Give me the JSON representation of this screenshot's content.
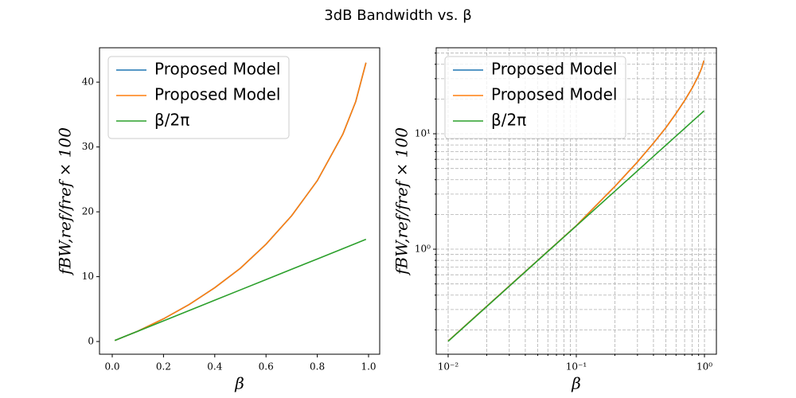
{
  "title": "3dB Bandwidth vs. β",
  "chart_data": [
    {
      "type": "line",
      "x_label": "β",
      "y_label": "fBW,ref/fref × 100",
      "x": [
        0.01,
        0.05,
        0.1,
        0.2,
        0.3,
        0.4,
        0.5,
        0.6,
        0.7,
        0.8,
        0.9,
        0.95,
        0.99
      ],
      "series": [
        {
          "name": "Proposed Model",
          "color": "#1f77b4",
          "values": [
            0.16,
            0.8,
            1.6,
            3.5,
            5.7,
            8.3,
            11.3,
            15.0,
            19.4,
            24.8,
            32,
            37,
            43
          ]
        },
        {
          "name": "Proposed Model",
          "color": "#ff7f0e",
          "values": [
            0.16,
            0.8,
            1.6,
            3.5,
            5.7,
            8.3,
            11.3,
            15.0,
            19.4,
            24.8,
            32,
            37,
            43
          ]
        },
        {
          "name": "β/2π",
          "color": "#2ca02c",
          "values": [
            0.159,
            0.796,
            1.59,
            3.18,
            4.77,
            6.37,
            7.96,
            9.55,
            11.14,
            12.73,
            14.32,
            15.12,
            15.76
          ]
        }
      ],
      "xlim": [
        -0.0497,
        1.0435
      ],
      "ylim": [
        -1.96,
        45.3
      ],
      "xticks": [
        {
          "value": 0,
          "label": "0.0"
        },
        0.2,
        0.4,
        0.6,
        0.8,
        {
          "value": 1,
          "label": "1.0"
        }
      ],
      "yticks": [
        0,
        10,
        20,
        30,
        40
      ],
      "log": false,
      "grid": false,
      "legend": "upper left"
    },
    {
      "type": "line",
      "x_label": "β",
      "y_label": "fBW,ref/fref × 100",
      "x": [
        0.01,
        0.05,
        0.1,
        0.2,
        0.3,
        0.4,
        0.5,
        0.6,
        0.7,
        0.8,
        0.9,
        0.95,
        0.99
      ],
      "series": [
        {
          "name": "Proposed Model",
          "color": "#1f77b4",
          "values": [
            0.16,
            0.8,
            1.6,
            3.5,
            5.7,
            8.3,
            11.3,
            15.0,
            19.4,
            24.8,
            32,
            37,
            43
          ]
        },
        {
          "name": "Proposed Model",
          "color": "#ff7f0e",
          "values": [
            0.16,
            0.8,
            1.6,
            3.5,
            5.7,
            8.3,
            11.3,
            15.0,
            19.4,
            24.8,
            32,
            37,
            43
          ]
        },
        {
          "name": "β/2π",
          "color": "#2ca02c",
          "values": [
            0.159,
            0.796,
            1.59,
            3.18,
            4.77,
            6.37,
            7.96,
            9.55,
            11.14,
            12.73,
            14.32,
            15.12,
            15.76
          ]
        }
      ],
      "xlim": [
        0.00807,
        1.239
      ],
      "ylim": [
        0.123,
        55.6
      ],
      "xticks": [
        {
          "value": 0.01,
          "label": "10⁻²"
        },
        {
          "value": 0.1,
          "label": "10⁻¹"
        },
        {
          "value": 1,
          "label": "10⁰"
        }
      ],
      "yticks": [
        {
          "value": 1,
          "label": "10⁰"
        },
        {
          "value": 10,
          "label": "10¹"
        }
      ],
      "xminorticks": [
        0.02,
        0.03,
        0.04,
        0.05,
        0.06,
        0.07,
        0.08,
        0.09,
        0.2,
        0.3,
        0.4,
        0.5,
        0.6,
        0.7,
        0.8,
        0.9
      ],
      "yminorticks": [
        0.2,
        0.3,
        0.4,
        0.5,
        0.6,
        0.7,
        0.8,
        0.9,
        2,
        3,
        4,
        5,
        6,
        7,
        8,
        9,
        20,
        30,
        40,
        50
      ],
      "log": true,
      "grid": true,
      "legend": "upper left"
    }
  ]
}
